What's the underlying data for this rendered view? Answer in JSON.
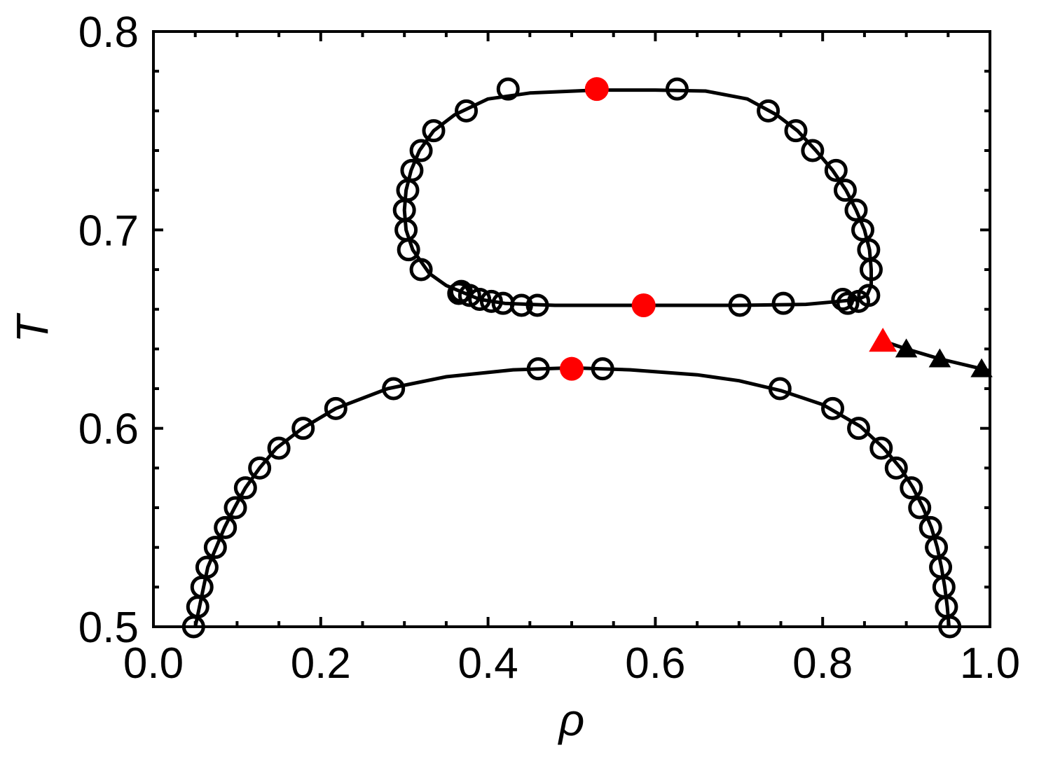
{
  "chart_data": {
    "type": "scatter",
    "title": "",
    "xlabel": "ρ",
    "ylabel": "T",
    "xlim": [
      0.0,
      1.0
    ],
    "ylim": [
      0.5,
      0.8
    ],
    "x_ticks": [
      "0.0",
      "0.2",
      "0.4",
      "0.6",
      "0.8",
      "1.0"
    ],
    "x_tick_values": [
      0.0,
      0.2,
      0.4,
      0.6,
      0.8,
      1.0
    ],
    "y_ticks": [
      "0.5",
      "0.6",
      "0.7",
      "0.8"
    ],
    "y_tick_values": [
      0.5,
      0.6,
      0.7,
      0.8
    ],
    "grid": false,
    "colors": {
      "axes": "#000000",
      "critical": "#ff0000",
      "open_marker": "#000000"
    },
    "curves": [
      {
        "points": [
          [
            0.05,
            0.5
          ],
          [
            0.055,
            0.51
          ],
          [
            0.06,
            0.52
          ],
          [
            0.065,
            0.53
          ],
          [
            0.075,
            0.54
          ],
          [
            0.085,
            0.55
          ],
          [
            0.097,
            0.56
          ],
          [
            0.11,
            0.57
          ],
          [
            0.127,
            0.58
          ],
          [
            0.147,
            0.59
          ],
          [
            0.178,
            0.6
          ],
          [
            0.218,
            0.61
          ],
          [
            0.28,
            0.62
          ],
          [
            0.35,
            0.626
          ],
          [
            0.43,
            0.6295
          ],
          [
            0.5,
            0.6305
          ],
          [
            0.57,
            0.6295
          ],
          [
            0.65,
            0.627
          ],
          [
            0.7,
            0.624
          ],
          [
            0.75,
            0.619
          ],
          [
            0.8,
            0.612
          ],
          [
            0.845,
            0.601
          ],
          [
            0.873,
            0.59
          ],
          [
            0.893,
            0.58
          ],
          [
            0.908,
            0.57
          ],
          [
            0.92,
            0.56
          ],
          [
            0.93,
            0.55
          ],
          [
            0.937,
            0.54
          ],
          [
            0.942,
            0.53
          ],
          [
            0.946,
            0.52
          ],
          [
            0.949,
            0.51
          ],
          [
            0.951,
            0.5
          ]
        ]
      },
      {
        "points": [
          [
            0.367,
            0.669
          ],
          [
            0.35,
            0.672
          ],
          [
            0.33,
            0.678
          ],
          [
            0.31,
            0.69
          ],
          [
            0.302,
            0.7
          ],
          [
            0.3,
            0.71
          ],
          [
            0.302,
            0.72
          ],
          [
            0.308,
            0.73
          ],
          [
            0.318,
            0.74
          ],
          [
            0.335,
            0.75
          ],
          [
            0.36,
            0.758
          ],
          [
            0.4,
            0.766
          ],
          [
            0.45,
            0.769
          ],
          [
            0.53,
            0.7705
          ],
          [
            0.6,
            0.7705
          ],
          [
            0.66,
            0.77
          ],
          [
            0.71,
            0.766
          ],
          [
            0.745,
            0.758
          ],
          [
            0.77,
            0.75
          ],
          [
            0.792,
            0.74
          ],
          [
            0.812,
            0.73
          ],
          [
            0.828,
            0.72
          ],
          [
            0.84,
            0.71
          ],
          [
            0.85,
            0.7
          ],
          [
            0.856,
            0.69
          ],
          [
            0.858,
            0.68
          ],
          [
            0.858,
            0.672
          ],
          [
            0.853,
            0.667
          ],
          [
            0.842,
            0.665
          ],
          [
            0.82,
            0.664
          ],
          [
            0.78,
            0.6625
          ],
          [
            0.7,
            0.662
          ],
          [
            0.586,
            0.662
          ],
          [
            0.48,
            0.662
          ],
          [
            0.42,
            0.663
          ],
          [
            0.39,
            0.665
          ],
          [
            0.367,
            0.669
          ]
        ]
      },
      {
        "points": [
          [
            0.872,
            0.644
          ],
          [
            0.9,
            0.64
          ],
          [
            0.94,
            0.635
          ],
          [
            0.99,
            0.63
          ],
          [
            1.0,
            0.629
          ]
        ]
      }
    ],
    "open_points": [
      [
        0.048,
        0.5
      ],
      [
        0.053,
        0.51
      ],
      [
        0.058,
        0.52
      ],
      [
        0.064,
        0.53
      ],
      [
        0.074,
        0.54
      ],
      [
        0.086,
        0.55
      ],
      [
        0.098,
        0.56
      ],
      [
        0.11,
        0.57
      ],
      [
        0.127,
        0.58
      ],
      [
        0.15,
        0.59
      ],
      [
        0.179,
        0.6
      ],
      [
        0.218,
        0.61
      ],
      [
        0.287,
        0.62
      ],
      [
        0.46,
        0.63
      ],
      [
        0.537,
        0.63
      ],
      [
        0.749,
        0.62
      ],
      [
        0.812,
        0.61
      ],
      [
        0.843,
        0.6
      ],
      [
        0.87,
        0.59
      ],
      [
        0.888,
        0.58
      ],
      [
        0.906,
        0.57
      ],
      [
        0.916,
        0.56
      ],
      [
        0.929,
        0.55
      ],
      [
        0.936,
        0.54
      ],
      [
        0.941,
        0.53
      ],
      [
        0.945,
        0.52
      ],
      [
        0.948,
        0.51
      ],
      [
        0.952,
        0.5
      ],
      [
        0.424,
        0.771
      ],
      [
        0.626,
        0.771
      ],
      [
        0.735,
        0.76
      ],
      [
        0.768,
        0.75
      ],
      [
        0.788,
        0.74
      ],
      [
        0.816,
        0.73
      ],
      [
        0.827,
        0.72
      ],
      [
        0.84,
        0.71
      ],
      [
        0.848,
        0.7
      ],
      [
        0.855,
        0.69
      ],
      [
        0.858,
        0.68
      ],
      [
        0.855,
        0.667
      ],
      [
        0.843,
        0.664
      ],
      [
        0.83,
        0.663
      ],
      [
        0.824,
        0.665
      ],
      [
        0.753,
        0.663
      ],
      [
        0.701,
        0.662
      ],
      [
        0.459,
        0.662
      ],
      [
        0.44,
        0.662
      ],
      [
        0.418,
        0.663
      ],
      [
        0.404,
        0.664
      ],
      [
        0.39,
        0.665
      ],
      [
        0.378,
        0.667
      ],
      [
        0.368,
        0.669
      ],
      [
        0.365,
        0.668
      ],
      [
        0.32,
        0.68
      ],
      [
        0.305,
        0.69
      ],
      [
        0.302,
        0.7
      ],
      [
        0.3,
        0.71
      ],
      [
        0.304,
        0.72
      ],
      [
        0.309,
        0.73
      ],
      [
        0.32,
        0.74
      ],
      [
        0.335,
        0.75
      ],
      [
        0.374,
        0.76
      ]
    ],
    "critical_points": [
      [
        0.53,
        0.771
      ],
      [
        0.586,
        0.662
      ],
      [
        0.5,
        0.63
      ]
    ],
    "critical_triangle": [
      0.872,
      0.644
    ],
    "triangle_points": [
      [
        0.9,
        0.64
      ],
      [
        0.94,
        0.635
      ],
      [
        0.99,
        0.63
      ]
    ]
  }
}
